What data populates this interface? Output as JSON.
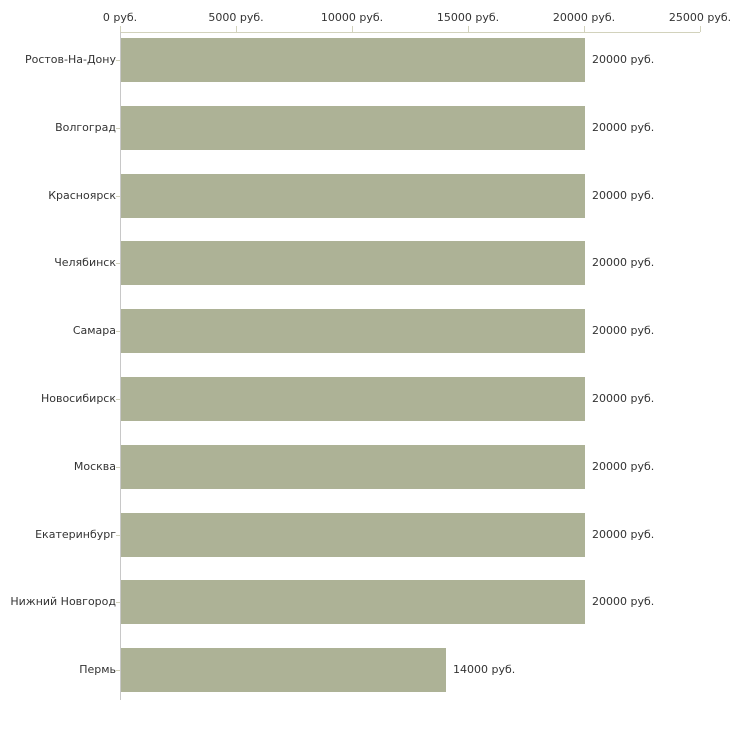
{
  "chart_data": {
    "type": "bar",
    "orientation": "horizontal",
    "title": "",
    "xlabel": "",
    "ylabel": "",
    "xlim": [
      0,
      25000
    ],
    "x_ticks": [
      0,
      5000,
      10000,
      15000,
      20000,
      25000
    ],
    "x_tick_labels": [
      "0 руб.",
      "5000 руб.",
      "10000 руб.",
      "15000 руб.",
      "20000 руб.",
      "25000 руб."
    ],
    "categories": [
      "Ростов-На-Дону",
      "Волгоград",
      "Красноярск",
      "Челябинск",
      "Самара",
      "Новосибирск",
      "Москва",
      "Екатеринбург",
      "Нижний Новгород",
      "Пермь"
    ],
    "values": [
      20000,
      20000,
      20000,
      20000,
      20000,
      20000,
      20000,
      20000,
      20000,
      14000
    ],
    "value_labels": [
      "20000 руб.",
      "20000 руб.",
      "20000 руб.",
      "20000 руб.",
      "20000 руб.",
      "20000 руб.",
      "20000 руб.",
      "20000 руб.",
      "20000 руб.",
      "14000 руб."
    ],
    "unit": "руб.",
    "grid": false,
    "legend": false,
    "colors": {
      "bar": "#adb296",
      "value_axis": "#d2d2bc",
      "category_axis": "#c8c8c8",
      "text": "#333333",
      "background": "#ffffff"
    }
  }
}
